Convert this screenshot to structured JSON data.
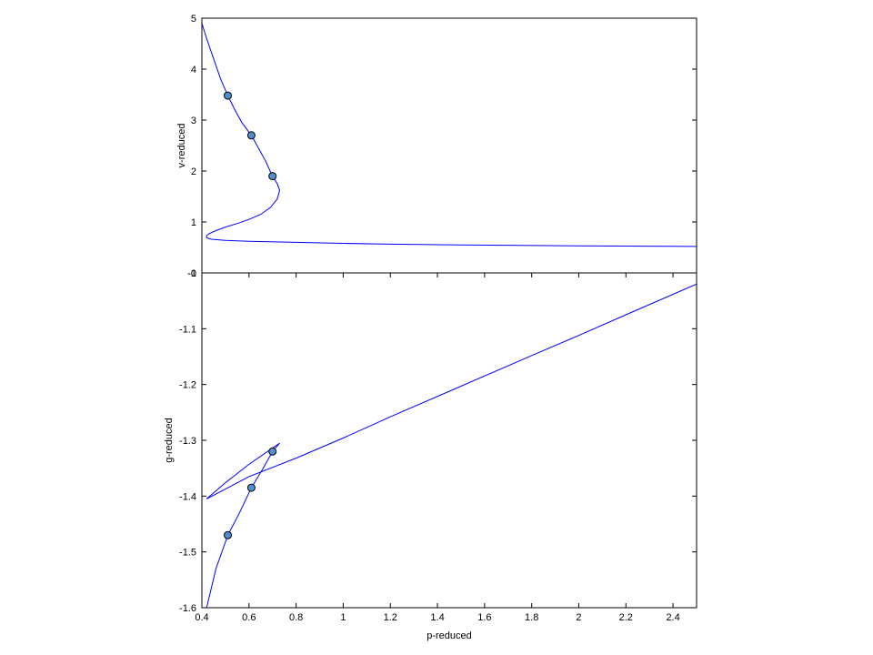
{
  "chart_data": [
    {
      "type": "line",
      "panel": "top",
      "ylabel": "v-reduced",
      "xlim": [
        0.4,
        2.5
      ],
      "ylim": [
        0,
        5
      ],
      "xticks": [],
      "yticks": [
        {
          "value": 0,
          "label": "-0"
        },
        {
          "value": 1,
          "label": "1"
        },
        {
          "value": 2,
          "label": "2"
        },
        {
          "value": 3,
          "label": "3"
        },
        {
          "value": 4,
          "label": "4"
        },
        {
          "value": 5,
          "label": "5"
        }
      ],
      "grid": false,
      "series": [
        {
          "x": [
            0.4,
            0.42,
            0.45,
            0.48,
            0.51,
            0.54,
            0.57,
            0.61,
            0.64,
            0.67,
            0.7,
            0.72,
            0.73,
            0.72,
            0.69,
            0.65,
            0.6,
            0.55,
            0.5,
            0.46,
            0.43,
            0.42,
            0.42,
            0.44,
            0.5,
            0.6,
            0.8,
            1.0,
            1.2,
            1.5,
            2.0,
            2.5
          ],
          "y": [
            4.9,
            4.6,
            4.2,
            3.8,
            3.48,
            3.2,
            2.95,
            2.7,
            2.45,
            2.2,
            1.9,
            1.75,
            1.62,
            1.45,
            1.28,
            1.15,
            1.05,
            0.97,
            0.9,
            0.83,
            0.77,
            0.73,
            0.69,
            0.66,
            0.64,
            0.62,
            0.6,
            0.58,
            0.565,
            0.55,
            0.53,
            0.52
          ]
        }
      ],
      "markers": [
        {
          "x": 0.51,
          "y": 3.48
        },
        {
          "x": 0.61,
          "y": 2.7
        },
        {
          "x": 0.7,
          "y": 1.9
        }
      ],
      "line_color": "#0000ff",
      "marker_color": "#4f8fcc"
    },
    {
      "type": "line",
      "panel": "bottom",
      "xlabel": "p-reduced",
      "ylabel": "g-reduced",
      "xlim": [
        0.4,
        2.5
      ],
      "ylim": [
        -1.6,
        -1.0
      ],
      "xticks": [
        {
          "value": 0.4,
          "label": "0.4"
        },
        {
          "value": 0.6,
          "label": "0.6"
        },
        {
          "value": 0.8,
          "label": "0.8"
        },
        {
          "value": 1.0,
          "label": "1"
        },
        {
          "value": 1.2,
          "label": "1.2"
        },
        {
          "value": 1.4,
          "label": "1.4"
        },
        {
          "value": 1.6,
          "label": "1.6"
        },
        {
          "value": 1.8,
          "label": "1.8"
        },
        {
          "value": 2.0,
          "label": "2"
        },
        {
          "value": 2.2,
          "label": "2.2"
        },
        {
          "value": 2.4,
          "label": "2.4"
        }
      ],
      "yticks": [
        {
          "value": -1.0,
          "label": "-1"
        },
        {
          "value": -1.1,
          "label": "-1.1"
        },
        {
          "value": -1.2,
          "label": "-1.2"
        },
        {
          "value": -1.3,
          "label": "-1.3"
        },
        {
          "value": -1.4,
          "label": "-1.4"
        },
        {
          "value": -1.5,
          "label": "-1.5"
        },
        {
          "value": -1.6,
          "label": "-1.6"
        }
      ],
      "grid": false,
      "series": [
        {
          "x": [
            0.42,
            0.46,
            0.51,
            0.56,
            0.61,
            0.66,
            0.7,
            0.73,
            0.6,
            0.5,
            0.42,
            0.6,
            0.8,
            1.0,
            1.2,
            1.5,
            1.8,
            2.0,
            2.2,
            2.5
          ],
          "y": [
            -1.6,
            -1.53,
            -1.47,
            -1.43,
            -1.385,
            -1.35,
            -1.32,
            -1.305,
            -1.343,
            -1.376,
            -1.405,
            -1.365,
            -1.332,
            -1.296,
            -1.258,
            -1.203,
            -1.148,
            -1.112,
            -1.075,
            -1.02
          ]
        }
      ],
      "markers": [
        {
          "x": 0.51,
          "y": -1.47
        },
        {
          "x": 0.61,
          "y": -1.385
        },
        {
          "x": 0.7,
          "y": -1.32
        }
      ],
      "line_color": "#0000ff",
      "marker_color": "#4f8fcc"
    }
  ]
}
